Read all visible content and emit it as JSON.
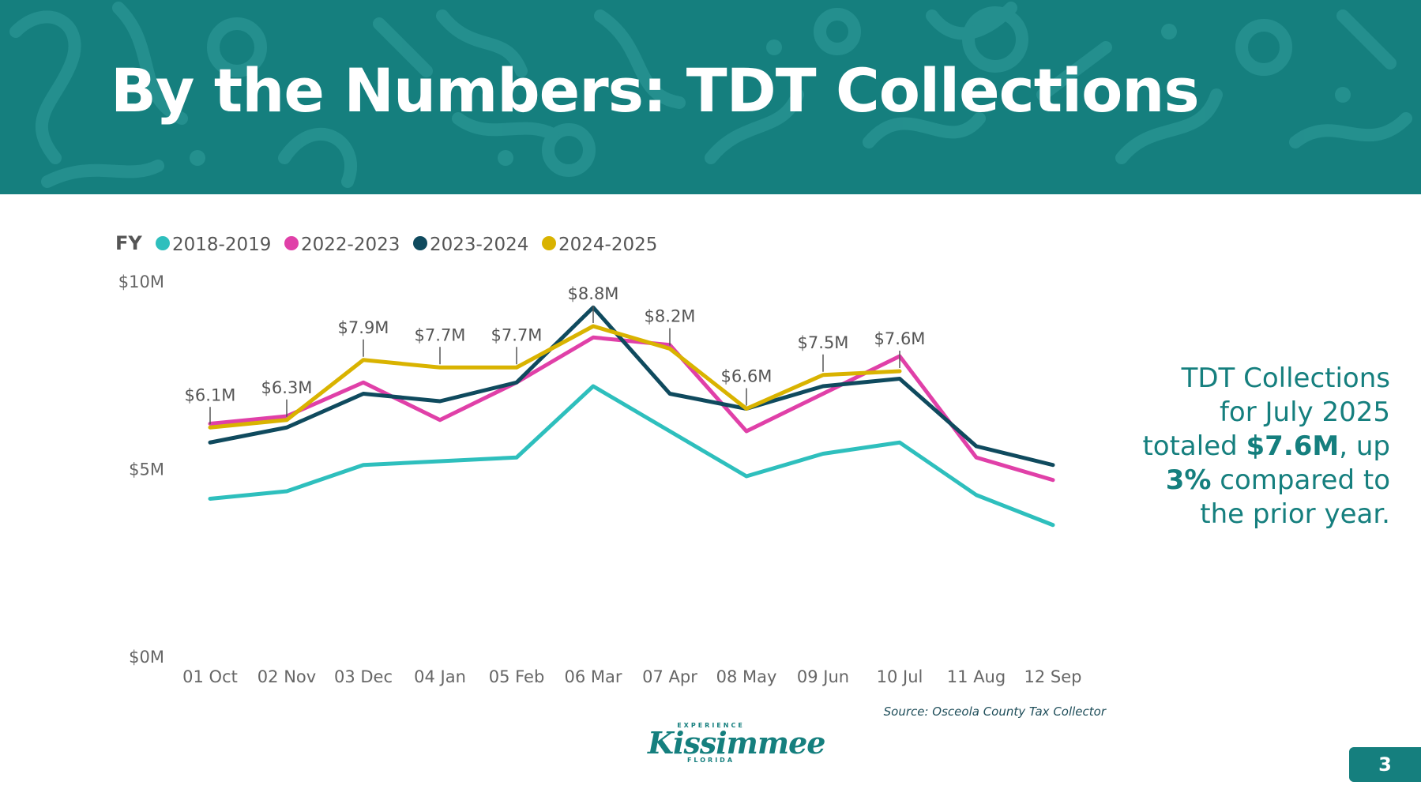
{
  "slide": {
    "title": "By the Numbers: TDT Collections",
    "summary_lines": [
      "TDT Collections",
      "for July 2025"
    ],
    "summary_line3_pre": "totaled ",
    "summary_line3_bold": "$7.6M",
    "summary_line3_post": ", up",
    "summary_line4_bold": "3%",
    "summary_line4_post": " compared to",
    "summary_line5": "the prior year.",
    "source": "Source: Osceola County Tax Collector",
    "logo_small_top": "EXPERIENCE",
    "logo_main": "Kissimmee",
    "logo_small_bottom": "FLORIDA",
    "page_number": "3",
    "header_color": "#157f7e"
  },
  "chart_data": {
    "type": "line",
    "legend_title": "FY",
    "legend_position": "top-left",
    "grid": false,
    "categories": [
      "01 Oct",
      "02 Nov",
      "03 Dec",
      "04 Jan",
      "05 Feb",
      "06 Mar",
      "07 Apr",
      "08 May",
      "09 Jun",
      "10 Jul",
      "11 Aug",
      "12 Sep"
    ],
    "ylim": [
      0,
      10
    ],
    "yticks": [
      {
        "value": 10,
        "label": "$10M"
      },
      {
        "value": 5,
        "label": "$5M"
      },
      {
        "value": 0,
        "label": "$0M"
      }
    ],
    "series": [
      {
        "name": "2018-2019",
        "color": "#2ebfbd",
        "values": [
          4.2,
          4.4,
          5.1,
          5.2,
          5.3,
          7.2,
          6.0,
          4.8,
          5.4,
          5.7,
          4.3,
          3.5
        ]
      },
      {
        "name": "2022-2023",
        "color": "#e040a8",
        "values": [
          6.2,
          6.4,
          7.3,
          6.3,
          7.3,
          8.5,
          8.3,
          6.0,
          7.0,
          8.0,
          5.3,
          4.7
        ]
      },
      {
        "name": "2023-2024",
        "color": "#0f4a5e",
        "values": [
          5.7,
          6.1,
          7.0,
          6.8,
          7.3,
          9.3,
          7.0,
          6.6,
          7.2,
          7.4,
          5.6,
          5.1
        ]
      },
      {
        "name": "2024-2025",
        "color": "#d9b300",
        "values": [
          6.1,
          6.3,
          7.9,
          7.7,
          7.7,
          8.8,
          8.2,
          6.6,
          7.5,
          7.6,
          null,
          null
        ],
        "labels": [
          "$6.1M",
          "$6.3M",
          "$7.9M",
          "$7.7M",
          "$7.7M",
          "$8.8M",
          "$8.2M",
          "$6.6M",
          "$7.5M",
          "$7.6M",
          "",
          ""
        ]
      }
    ]
  }
}
